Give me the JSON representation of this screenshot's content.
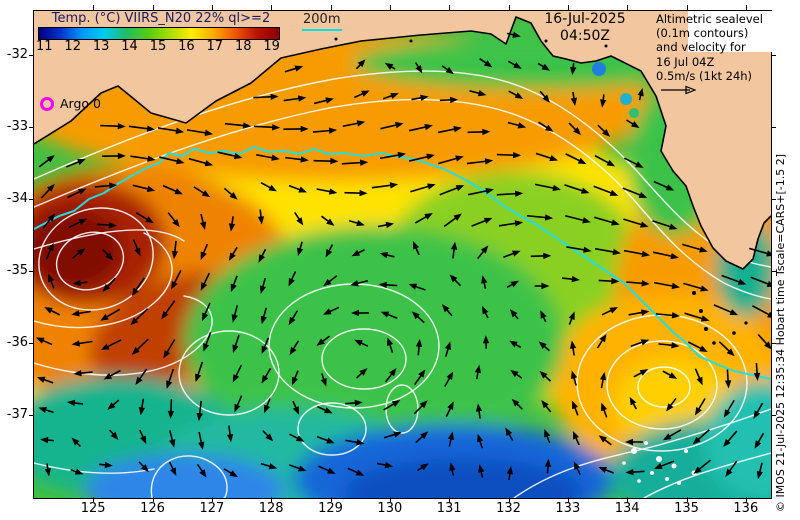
{
  "map": {
    "date_line1": "16-Jul-2025",
    "date_line2": "04:50Z",
    "depth_label": "200m",
    "argo_label": "Argo 0",
    "info_lines": [
      "Altimetric sealevel",
      "(0.1m contours)",
      "and velocity for",
      "16 Jul 04Z",
      "0.5m/s (1kt 24h)"
    ],
    "copyright": "© IMOS 21-Jul-2025 12:35:34 Hobart time Tscale=CARS+[-1.5 2]"
  },
  "colorbar": {
    "title": "Temp. (°C) VIIRS_N20 22% ql>=2",
    "units": "°C",
    "ticks": [
      "11",
      "12",
      "13",
      "14",
      "15",
      "16",
      "17",
      "18",
      "19"
    ],
    "range": [
      11,
      19
    ],
    "gradient": [
      "#000082",
      "#0033cc",
      "#0099ff",
      "#00ccee",
      "#22bb66",
      "#55cc11",
      "#aadd00",
      "#ffee00",
      "#ffaa00",
      "#ee5500",
      "#bb1100",
      "#8a0000"
    ]
  },
  "axes": {
    "x_ticks": [
      125,
      126,
      127,
      128,
      129,
      130,
      131,
      132,
      133,
      134,
      135,
      136
    ],
    "y_ticks": [
      -32,
      -33,
      -34,
      -35,
      -36,
      -37
    ]
  },
  "colors": {
    "land": "#f2c69e",
    "isobath_200m": "#22dede",
    "sealevel_contour": "#ffffff",
    "velocity_arrow": "#000000",
    "argo_marker": "#ff00ff",
    "coastline": "#000000"
  },
  "arrows": {
    "spacing": 31,
    "color": "#000000"
  }
}
